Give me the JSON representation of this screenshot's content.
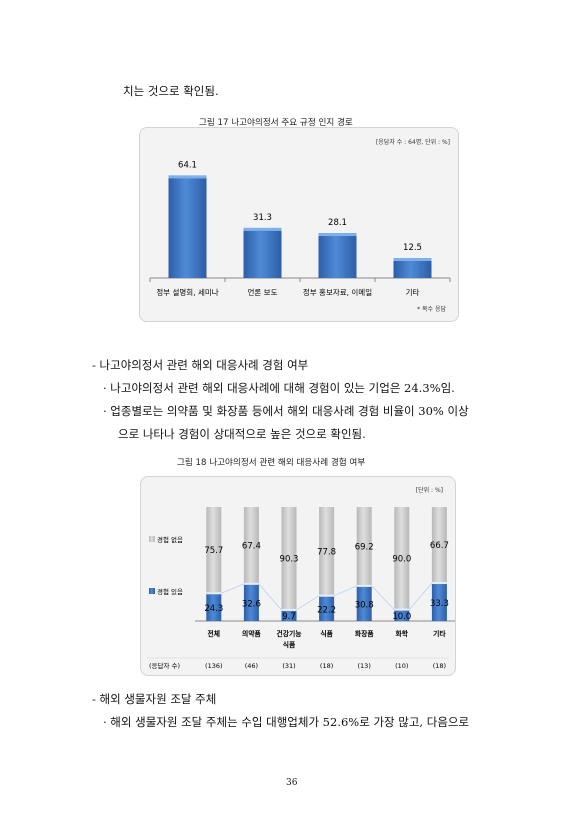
{
  "top_line": "치는 것으로 확인됨.",
  "figure17": {
    "caption": "그림 17 나고야의정서 주요 규정 인지 경로",
    "note": "[응답자 수 : 64명, 단위 : %]",
    "footnote": "* 복수 응답",
    "chart_data": {
      "type": "bar",
      "categories": [
        "정부 설명회, 세미나",
        "언론 보도",
        "정부 홍보자료, 이메일",
        "기타"
      ],
      "values": [
        64.1,
        31.3,
        28.1,
        12.5
      ],
      "ylim": [
        0,
        70
      ],
      "grid": false,
      "color": "#3a73c4"
    }
  },
  "section1": {
    "heading": "- 나고야의정서 관련 해외 대응사례 경험 여부",
    "bullet1": "· 나고야의정서 관련 해외 대응사례에 대해 경험이 있는 기업은 24.3%임.",
    "bullet2_line1": "· 업종별로는 의약품 및 화장품 등에서 해외 대응사례 경험 비율이 30% 이상",
    "bullet2_line2": "으로 나타나 경험이 상대적으로 높은 것으로 확인됨."
  },
  "figure18": {
    "caption": "그림 18 나고야의정서 관련 해외 대응사례 경험 여부",
    "note": "[단위 : %]",
    "respondents_label": "(응답자 수)",
    "chart_data": {
      "type": "bar",
      "stacked": true,
      "categories": [
        "전체",
        "의약품",
        "건강기능\n식품",
        "식품",
        "화장품",
        "화학",
        "기타"
      ],
      "respondents": [
        "(136)",
        "(46)",
        "(31)",
        "(18)",
        "(13)",
        "(10)",
        "(18)"
      ],
      "series": [
        {
          "name": "경험 있음",
          "values": [
            24.3,
            32.6,
            9.7,
            22.2,
            30.8,
            10.0,
            33.3
          ],
          "color": "#3a73c4"
        },
        {
          "name": "경험 없음",
          "values": [
            75.7,
            67.4,
            90.3,
            77.8,
            69.2,
            90.0,
            66.7
          ],
          "color": "#c9c9c9"
        }
      ],
      "ylim": [
        0,
        100
      ],
      "legend": "left"
    }
  },
  "section2": {
    "heading": "- 해외 생물자원 조달 주체",
    "bullet1": "· 해외 생물자원 조달 주체는 수입 대행업체가 52.6%로 가장 많고, 다음으로"
  },
  "page_number": "36"
}
